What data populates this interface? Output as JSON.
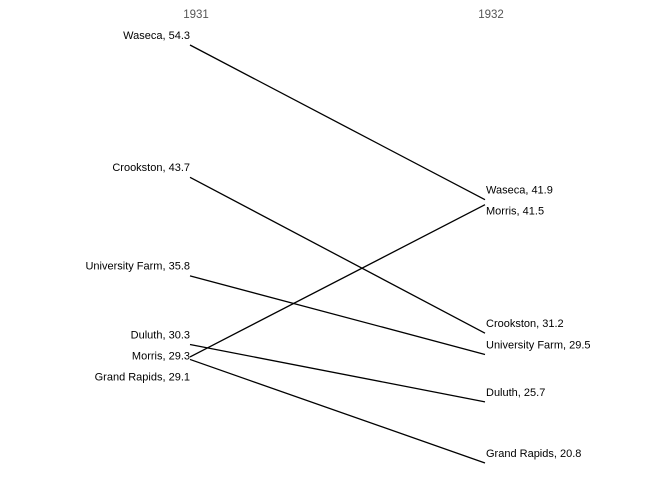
{
  "chart_data": {
    "type": "slope",
    "categories": [
      "1931",
      "1932"
    ],
    "color": "#000000",
    "series": [
      {
        "values": [
          54.3,
          41.9
        ],
        "value_labels": [
          "Waseca, 54.3",
          "Waseca, 41.9"
        ]
      },
      {
        "values": [
          43.7,
          31.2
        ],
        "value_labels": [
          "Crookston, 43.7",
          "Crookston, 31.2"
        ]
      },
      {
        "values": [
          35.8,
          29.5
        ],
        "value_labels": [
          "University Farm, 35.8",
          "University Farm, 29.5"
        ]
      },
      {
        "values": [
          30.3,
          25.7
        ],
        "value_labels": [
          "Duluth, 30.3",
          "Duluth, 25.7"
        ]
      },
      {
        "values": [
          29.3,
          41.5
        ],
        "value_labels": [
          "Morris, 29.3",
          "Morris, 41.5"
        ]
      },
      {
        "values": [
          29.1,
          20.8
        ],
        "value_labels": [
          "Grand Rapids, 29.1",
          "Grand Rapids, 20.8"
        ]
      }
    ]
  }
}
